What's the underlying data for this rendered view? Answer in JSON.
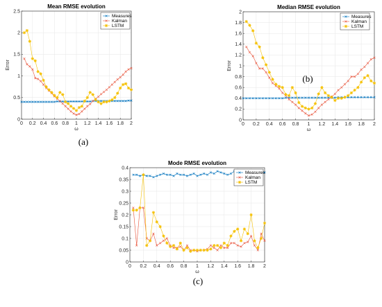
{
  "chart_data": [
    {
      "type": "line",
      "title": "Mean RMSE evolution",
      "xlabel": "ω",
      "ylabel": "Error",
      "panel_label": "(a)",
      "xlim": [
        0,
        2
      ],
      "ylim": [
        0,
        2.5
      ],
      "xticks": [
        "0",
        "0.2",
        "0.4",
        "0.6",
        "0.8",
        "1",
        "1.2",
        "1.4",
        "1.6",
        "1.8",
        "2"
      ],
      "yticks": [
        "0",
        "0.5",
        "1",
        "1.5",
        "2",
        "2.5"
      ],
      "grid": true,
      "legend_position": "top-right",
      "series": [
        {
          "name": "Measures",
          "color": "#0072BD",
          "marker": "x",
          "x": [
            0,
            0.05,
            0.1,
            0.15,
            0.2,
            0.25,
            0.3,
            0.35,
            0.4,
            0.45,
            0.5,
            0.55,
            0.6,
            0.65,
            0.7,
            0.75,
            0.8,
            0.85,
            0.9,
            0.95,
            1.0,
            1.05,
            1.1,
            1.15,
            1.2,
            1.25,
            1.3,
            1.35,
            1.4,
            1.45,
            1.5,
            1.55,
            1.6,
            1.65,
            1.7,
            1.75,
            1.8,
            1.85,
            1.9,
            1.95,
            2.0
          ],
          "y": [
            0.4,
            0.4,
            0.4,
            0.4,
            0.4,
            0.4,
            0.4,
            0.4,
            0.4,
            0.4,
            0.4,
            0.4,
            0.4,
            0.41,
            0.41,
            0.41,
            0.41,
            0.41,
            0.41,
            0.41,
            0.41,
            0.41,
            0.41,
            0.41,
            0.41,
            0.41,
            0.42,
            0.42,
            0.42,
            0.42,
            0.42,
            0.42,
            0.42,
            0.42,
            0.42,
            0.42,
            0.42,
            0.42,
            0.42,
            0.43,
            0.43
          ]
        },
        {
          "name": "Kalman",
          "color": "#E8533A",
          "marker": "x",
          "x": [
            0.05,
            0.1,
            0.15,
            0.2,
            0.25,
            0.3,
            0.35,
            0.4,
            0.45,
            0.5,
            0.55,
            0.6,
            0.65,
            0.7,
            0.75,
            0.8,
            0.85,
            0.9,
            0.95,
            1.0,
            1.05,
            1.1,
            1.15,
            1.2,
            1.25,
            1.3,
            1.35,
            1.4,
            1.45,
            1.5,
            1.55,
            1.6,
            1.65,
            1.7,
            1.75,
            1.8,
            1.85,
            1.9,
            1.95,
            2.0
          ],
          "y": [
            1.4,
            1.27,
            1.22,
            1.15,
            0.95,
            0.93,
            0.88,
            0.8,
            0.72,
            0.66,
            0.6,
            0.53,
            0.47,
            0.42,
            0.36,
            0.3,
            0.24,
            0.18,
            0.13,
            0.1,
            0.12,
            0.18,
            0.24,
            0.3,
            0.35,
            0.42,
            0.47,
            0.52,
            0.58,
            0.63,
            0.68,
            0.74,
            0.8,
            0.86,
            0.92,
            0.97,
            1.03,
            1.1,
            1.15,
            1.18
          ]
        },
        {
          "name": "LSTM",
          "color": "#F5C000",
          "marker": "*",
          "x": [
            0.05,
            0.1,
            0.15,
            0.2,
            0.25,
            0.3,
            0.35,
            0.4,
            0.45,
            0.5,
            0.55,
            0.6,
            0.65,
            0.7,
            0.75,
            0.8,
            0.85,
            0.9,
            0.95,
            1.0,
            1.05,
            1.1,
            1.15,
            1.2,
            1.25,
            1.3,
            1.35,
            1.4,
            1.45,
            1.5,
            1.55,
            1.6,
            1.65,
            1.7,
            1.75,
            1.8,
            1.85,
            1.9,
            1.95,
            2.0
          ],
          "y": [
            2.0,
            2.05,
            1.8,
            1.4,
            1.35,
            1.1,
            1.05,
            0.9,
            0.75,
            0.68,
            0.62,
            0.55,
            0.5,
            0.62,
            0.57,
            0.4,
            0.36,
            0.3,
            0.25,
            0.2,
            0.27,
            0.3,
            0.42,
            0.5,
            0.62,
            0.57,
            0.45,
            0.4,
            0.36,
            0.4,
            0.4,
            0.42,
            0.45,
            0.5,
            0.6,
            0.72,
            0.8,
            0.82,
            0.72,
            0.68
          ]
        }
      ]
    },
    {
      "type": "line",
      "title": "Median RMSE evolution",
      "xlabel": "ω",
      "ylabel": "Error",
      "panel_label": "(b)",
      "xlim": [
        0,
        2
      ],
      "ylim": [
        0,
        2
      ],
      "xticks": [
        "0",
        "0.2",
        "0.4",
        "0.6",
        "0.8",
        "1",
        "1.2",
        "1.4",
        "1.6",
        "1.8",
        "2"
      ],
      "yticks": [
        "0",
        "0.2",
        "0.4",
        "0.6",
        "0.8",
        "1",
        "1.2",
        "1.4",
        "1.6",
        "1.8",
        "2"
      ],
      "grid": true,
      "legend_position": "top-right",
      "series": [
        {
          "name": "Measures",
          "color": "#0072BD",
          "marker": "x",
          "x": [
            0,
            0.05,
            0.1,
            0.15,
            0.2,
            0.25,
            0.3,
            0.35,
            0.4,
            0.45,
            0.5,
            0.55,
            0.6,
            0.65,
            0.7,
            0.75,
            0.8,
            0.85,
            0.9,
            0.95,
            1.0,
            1.05,
            1.1,
            1.15,
            1.2,
            1.25,
            1.3,
            1.35,
            1.4,
            1.45,
            1.5,
            1.55,
            1.6,
            1.65,
            1.7,
            1.75,
            1.8,
            1.85,
            1.9,
            1.95,
            2.0
          ],
          "y": [
            0.4,
            0.4,
            0.4,
            0.4,
            0.4,
            0.4,
            0.4,
            0.4,
            0.4,
            0.4,
            0.4,
            0.4,
            0.4,
            0.41,
            0.41,
            0.41,
            0.41,
            0.41,
            0.41,
            0.41,
            0.41,
            0.41,
            0.41,
            0.41,
            0.41,
            0.41,
            0.41,
            0.41,
            0.41,
            0.42,
            0.42,
            0.42,
            0.42,
            0.42,
            0.42,
            0.42,
            0.42,
            0.42,
            0.42,
            0.42,
            0.42
          ]
        },
        {
          "name": "Kalman",
          "color": "#E8533A",
          "marker": "x",
          "x": [
            0.05,
            0.1,
            0.15,
            0.2,
            0.25,
            0.3,
            0.35,
            0.4,
            0.45,
            0.5,
            0.55,
            0.6,
            0.65,
            0.7,
            0.75,
            0.8,
            0.85,
            0.9,
            0.95,
            1.0,
            1.05,
            1.1,
            1.15,
            1.2,
            1.25,
            1.3,
            1.35,
            1.4,
            1.45,
            1.5,
            1.55,
            1.6,
            1.65,
            1.7,
            1.75,
            1.8,
            1.85,
            1.9,
            1.95,
            2.0
          ],
          "y": [
            1.35,
            1.25,
            1.18,
            1.05,
            0.95,
            0.95,
            0.88,
            0.78,
            0.68,
            0.63,
            0.58,
            0.5,
            0.45,
            0.38,
            0.33,
            0.28,
            0.22,
            0.17,
            0.12,
            0.08,
            0.1,
            0.15,
            0.22,
            0.28,
            0.33,
            0.38,
            0.43,
            0.48,
            0.55,
            0.6,
            0.66,
            0.72,
            0.8,
            0.8,
            0.85,
            0.93,
            0.98,
            1.05,
            1.12,
            1.15
          ]
        },
        {
          "name": "LSTM",
          "color": "#F5C000",
          "marker": "*",
          "x": [
            0.05,
            0.1,
            0.15,
            0.2,
            0.25,
            0.3,
            0.35,
            0.4,
            0.45,
            0.5,
            0.55,
            0.6,
            0.65,
            0.7,
            0.75,
            0.8,
            0.85,
            0.9,
            0.95,
            1.0,
            1.05,
            1.1,
            1.15,
            1.2,
            1.25,
            1.3,
            1.35,
            1.4,
            1.45,
            1.5,
            1.55,
            1.6,
            1.65,
            1.7,
            1.75,
            1.8,
            1.85,
            1.9,
            1.95,
            2.0
          ],
          "y": [
            1.82,
            1.75,
            1.65,
            1.42,
            1.35,
            1.15,
            1.02,
            0.88,
            0.75,
            0.66,
            0.62,
            0.6,
            0.47,
            0.45,
            0.6,
            0.5,
            0.32,
            0.25,
            0.22,
            0.2,
            0.22,
            0.3,
            0.48,
            0.6,
            0.5,
            0.45,
            0.42,
            0.36,
            0.4,
            0.4,
            0.42,
            0.45,
            0.5,
            0.55,
            0.6,
            0.7,
            0.78,
            0.82,
            0.72,
            0.68
          ]
        }
      ]
    },
    {
      "type": "line",
      "title": "Mode RMSE evolution",
      "xlabel": "ω",
      "ylabel": "Error",
      "panel_label": "(c)",
      "xlim": [
        0,
        2
      ],
      "ylim": [
        0,
        0.4
      ],
      "xticks": [
        "0",
        "0.2",
        "0.4",
        "0.6",
        "0.8",
        "1",
        "1.2",
        "1.4",
        "1.6",
        "1.8",
        "2"
      ],
      "yticks": [
        "0",
        "0.05",
        "0.1",
        "0.15",
        "0.2",
        "0.25",
        "0.3",
        "0.35",
        "0.4"
      ],
      "grid": true,
      "legend_position": "top-right",
      "series": [
        {
          "name": "Measures",
          "color": "#0072BD",
          "marker": "x",
          "x": [
            0.05,
            0.1,
            0.15,
            0.2,
            0.25,
            0.3,
            0.35,
            0.4,
            0.45,
            0.5,
            0.55,
            0.6,
            0.65,
            0.7,
            0.75,
            0.8,
            0.85,
            0.9,
            0.95,
            1.0,
            1.05,
            1.1,
            1.15,
            1.2,
            1.25,
            1.3,
            1.35,
            1.4,
            1.45,
            1.5,
            1.55,
            1.6,
            1.65,
            1.7,
            1.75,
            1.8,
            1.85,
            1.9,
            1.95,
            2.0
          ],
          "y": [
            0.37,
            0.37,
            0.365,
            0.37,
            0.365,
            0.365,
            0.36,
            0.365,
            0.37,
            0.375,
            0.37,
            0.37,
            0.365,
            0.375,
            0.37,
            0.37,
            0.365,
            0.37,
            0.375,
            0.365,
            0.37,
            0.375,
            0.37,
            0.38,
            0.375,
            0.385,
            0.38,
            0.375,
            0.37,
            0.375,
            0.385,
            0.375,
            0.38,
            0.375,
            0.37,
            0.38,
            0.375,
            0.38,
            0.38,
            0.38
          ]
        },
        {
          "name": "Kalman",
          "color": "#E8533A",
          "marker": "x",
          "x": [
            0.05,
            0.1,
            0.15,
            0.2,
            0.25,
            0.3,
            0.35,
            0.4,
            0.45,
            0.5,
            0.55,
            0.6,
            0.65,
            0.7,
            0.75,
            0.8,
            0.85,
            0.9,
            0.95,
            1.0,
            1.05,
            1.1,
            1.15,
            1.2,
            1.25,
            1.3,
            1.35,
            1.4,
            1.45,
            1.5,
            1.55,
            1.6,
            1.65,
            1.7,
            1.75,
            1.8,
            1.85,
            1.9,
            1.95,
            2.0
          ],
          "y": [
            0.23,
            0.07,
            0.23,
            0.23,
            0.1,
            0.09,
            0.12,
            0.07,
            0.08,
            0.09,
            0.1,
            0.07,
            0.06,
            0.06,
            0.065,
            0.05,
            0.07,
            0.05,
            0.05,
            0.045,
            0.05,
            0.05,
            0.055,
            0.07,
            0.06,
            0.05,
            0.07,
            0.06,
            0.06,
            0.08,
            0.08,
            0.07,
            0.065,
            0.08,
            0.085,
            0.11,
            0.07,
            0.05,
            0.12,
            0.09
          ]
        },
        {
          "name": "LSTM",
          "color": "#F5C000",
          "marker": "*",
          "x": [
            0.05,
            0.1,
            0.15,
            0.2,
            0.25,
            0.3,
            0.35,
            0.4,
            0.45,
            0.5,
            0.55,
            0.6,
            0.65,
            0.7,
            0.75,
            0.8,
            0.85,
            0.9,
            0.95,
            1.0,
            1.05,
            1.1,
            1.15,
            1.2,
            1.25,
            1.3,
            1.35,
            1.4,
            1.45,
            1.5,
            1.55,
            1.6,
            1.65,
            1.7,
            1.75,
            1.8,
            1.85,
            1.9,
            1.95,
            2.0
          ],
          "y": [
            0.22,
            0.22,
            0.23,
            0.37,
            0.07,
            0.09,
            0.21,
            0.17,
            0.15,
            0.11,
            0.08,
            0.065,
            0.07,
            0.055,
            0.08,
            0.05,
            0.06,
            0.045,
            0.05,
            0.05,
            0.05,
            0.05,
            0.05,
            0.055,
            0.07,
            0.07,
            0.06,
            0.08,
            0.07,
            0.11,
            0.13,
            0.14,
            0.09,
            0.14,
            0.12,
            0.2,
            0.09,
            0.06,
            0.1,
            0.165
          ]
        }
      ]
    }
  ]
}
